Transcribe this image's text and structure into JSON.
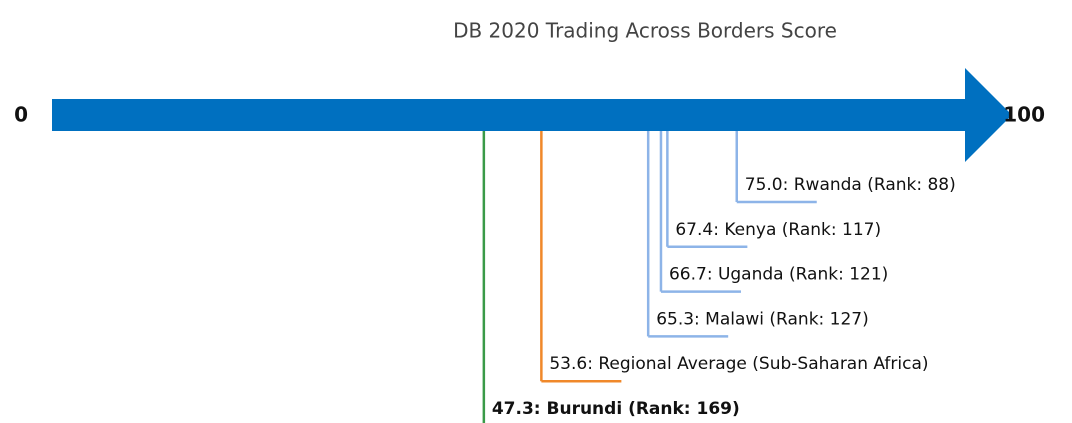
{
  "chart_data": {
    "type": "scale",
    "title": "DB 2020 Trading Across Borders Score",
    "xlim": [
      0,
      100
    ],
    "xticks": [
      0,
      100
    ],
    "axis_color": "#0070c0",
    "categories": [
      "75.0: Rwanda (Rank: 88)",
      "67.4: Kenya (Rank: 117)",
      "66.7: Uganda (Rank: 121)",
      "65.3: Malawi (Rank: 127)",
      "53.6: Regional Average (Sub-Saharan Africa)",
      "47.3: Burundi (Rank: 169)"
    ],
    "values": [
      75.0,
      67.4,
      66.7,
      65.3,
      53.6,
      47.3
    ],
    "colors": [
      "#8db4e8",
      "#8db4e8",
      "#8db4e8",
      "#8db4e8",
      "#f0882a",
      "#3a9a48"
    ],
    "bold": [
      false,
      false,
      false,
      false,
      false,
      true
    ]
  }
}
